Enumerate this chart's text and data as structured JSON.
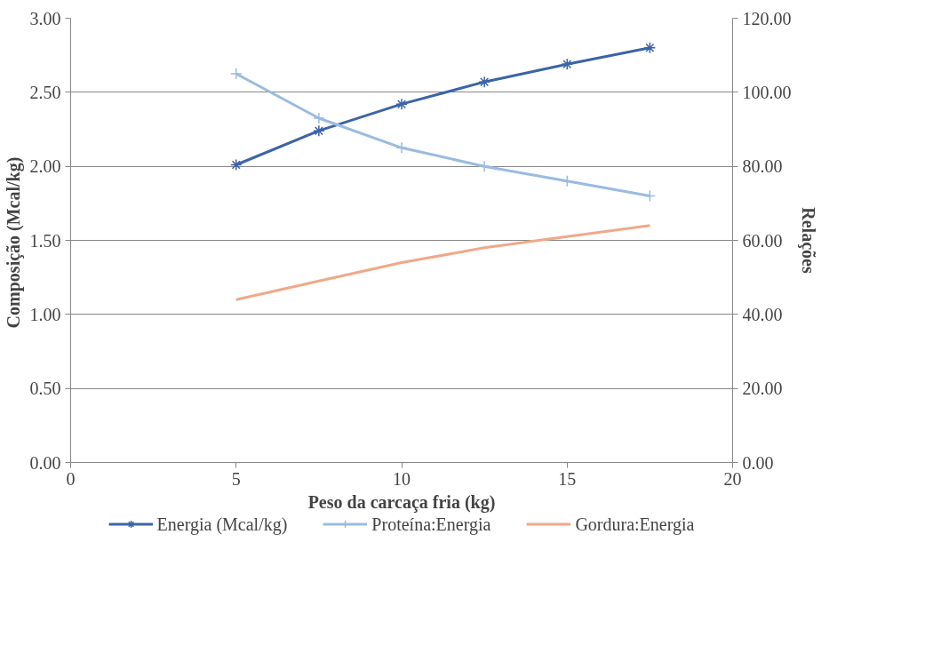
{
  "chart_data": {
    "type": "line",
    "xlabel": "Peso da carcaça fria (kg)",
    "ylabel": "Composição  (Mcal/kg)",
    "y2label": "Relações",
    "x": [
      5,
      7.5,
      10,
      12.5,
      15,
      17.5
    ],
    "xlim": [
      0,
      20
    ],
    "xticks": [
      0,
      5,
      10,
      15,
      20
    ],
    "ylim": [
      0,
      3
    ],
    "yticks": [
      {
        "value": 0,
        "label": "0.00"
      },
      {
        "value": 0.5,
        "label": "0.50"
      },
      {
        "value": 1,
        "label": "1.00"
      },
      {
        "value": 1.5,
        "label": "1.50"
      },
      {
        "value": 2,
        "label": "2.00"
      },
      {
        "value": 2.5,
        "label": "2.50"
      },
      {
        "value": 3,
        "label": "3.00"
      }
    ],
    "y2lim": [
      0,
      120
    ],
    "y2ticks": [
      {
        "value": 0,
        "label": "0.00"
      },
      {
        "value": 20,
        "label": "20.00"
      },
      {
        "value": 40,
        "label": "40.00"
      },
      {
        "value": 60,
        "label": "60.00"
      },
      {
        "value": 80,
        "label": "80.00"
      },
      {
        "value": 100,
        "label": "100.00"
      },
      {
        "value": 120,
        "label": "120.00"
      }
    ],
    "grid": "y",
    "legend": "bottom",
    "series": [
      {
        "name": "Energia (Mcal/kg)",
        "color": "#3c64a8",
        "marker": "cross",
        "values": [
          2.01,
          2.24,
          2.42,
          2.57,
          2.69,
          2.8
        ]
      },
      {
        "name": "Proteína:Energia",
        "color": "#9bbbe0",
        "marker": "cross",
        "axis": "y2",
        "values": [
          105,
          93,
          85,
          80,
          76,
          72
        ]
      },
      {
        "name": "Gordura:Energia",
        "color": "#f0a889",
        "marker": "none",
        "axis": "y2",
        "values": [
          44,
          49,
          54,
          58,
          61,
          64
        ]
      }
    ]
  }
}
